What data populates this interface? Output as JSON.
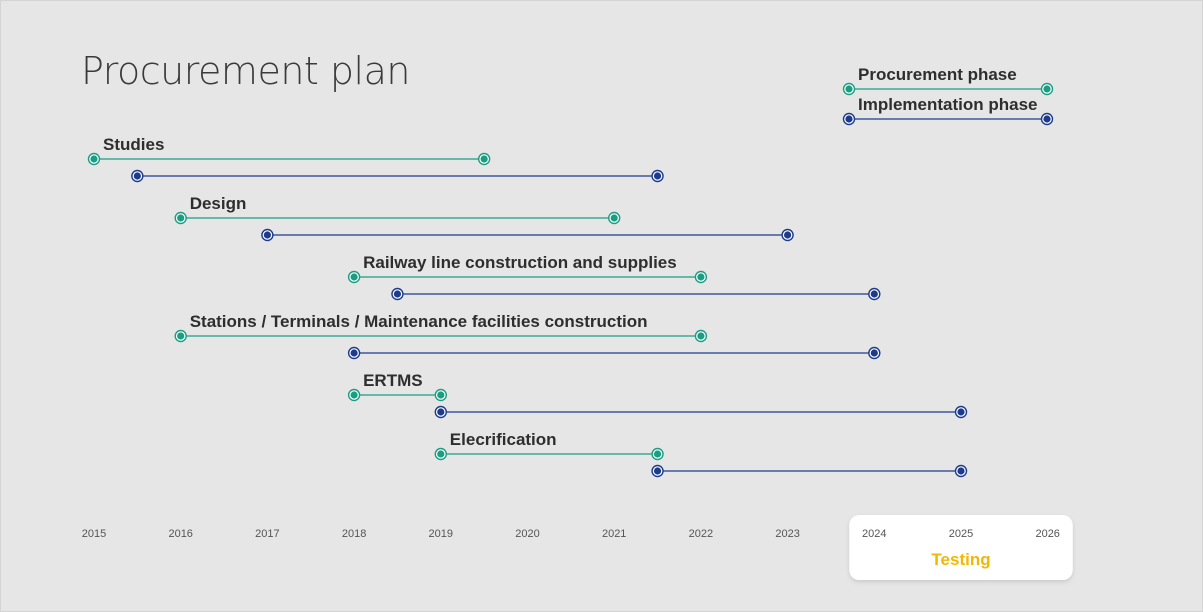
{
  "title": "Procurement plan",
  "colors": {
    "procurement": "#1a9e82",
    "implementation": "#1c3b8c",
    "testing_text": "#f2b705",
    "background": "#e6e6e6"
  },
  "chart_data": {
    "type": "gantt",
    "x_ticks": [
      "2015",
      "2016",
      "2017",
      "2018",
      "2019",
      "2020",
      "2021",
      "2022",
      "2023",
      "2024",
      "2025",
      "2026"
    ],
    "xlim": [
      2015,
      2026
    ],
    "legend": {
      "placement": "top-right",
      "entries": [
        {
          "key": "procurement",
          "label": "Procurement phase"
        },
        {
          "key": "implementation",
          "label": "Implementation phase"
        }
      ]
    },
    "tasks": [
      {
        "name": "Studies",
        "procurement": [
          2015.0,
          2019.5
        ],
        "implementation": [
          2015.5,
          2021.5
        ]
      },
      {
        "name": "Design",
        "procurement": [
          2016.0,
          2021.0
        ],
        "implementation": [
          2017.0,
          2023.0
        ]
      },
      {
        "name": "Railway line construction and supplies",
        "procurement": [
          2018.0,
          2022.0
        ],
        "implementation": [
          2018.5,
          2024.0
        ]
      },
      {
        "name": "Stations / Terminals / Maintenance facilities construction",
        "procurement": [
          2016.0,
          2022.0
        ],
        "implementation": [
          2018.0,
          2024.0
        ]
      },
      {
        "name": "ERTMS",
        "procurement": [
          2018.0,
          2019.0
        ],
        "implementation": [
          2019.0,
          2025.0
        ]
      },
      {
        "name": "Elecrification",
        "procurement": [
          2019.0,
          2021.5
        ],
        "implementation": [
          2021.5,
          2025.0
        ]
      }
    ],
    "highlight": {
      "label": "Testing",
      "range": [
        2024,
        2026
      ]
    }
  }
}
